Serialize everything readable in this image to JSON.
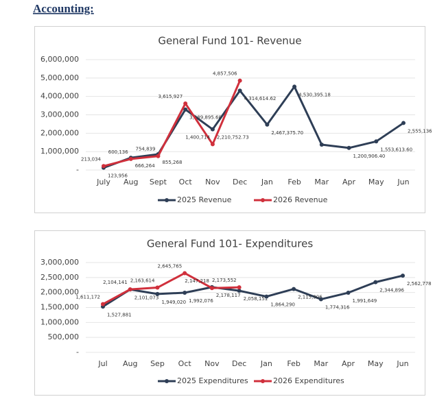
{
  "heading": "Accounting:",
  "chart_data": [
    {
      "type": "line",
      "title": "General Fund 101- Revenue",
      "categories": [
        "July",
        "Aug",
        "Sept",
        "Oct",
        "Nov",
        "Dec",
        "Jan",
        "Feb",
        "Mar",
        "Apr",
        "May",
        "Jun"
      ],
      "series": [
        {
          "name": "2025 Revenue",
          "color": "#2e3e56",
          "values": [
            123956,
            666264,
            855268,
            3289895.68,
            2210752.73,
            4314614.62,
            2467375.7,
            4530395.18,
            1380000,
            1200906.4,
            1553613.6,
            2555136
          ],
          "value_labels": [
            "123,956",
            "666,264",
            "855,268",
            "3,289,895.68",
            "2,210,752.73",
            "4,314,614.62",
            "2,467,375.70",
            "4,530,395.18",
            null,
            "1,200,906.40",
            "1,553,613.60",
            "2,555,136"
          ]
        },
        {
          "name": "2026 Revenue",
          "color": "#d0303c",
          "values": [
            213034,
            600136,
            754839,
            3615927,
            1400714,
            4857506,
            null,
            null,
            null,
            null,
            null,
            null
          ],
          "value_labels": [
            "213,034",
            "600,136",
            "754,839",
            "3,615,927",
            "1,400,714",
            "4,857,506",
            null,
            null,
            null,
            null,
            null,
            null
          ]
        }
      ],
      "ylim": [
        0,
        6000000
      ],
      "yticks": [
        {
          "value": 0,
          "label": "-"
        },
        {
          "value": 1000000,
          "label": "1,000,000"
        },
        {
          "value": 2000000,
          "label": "2,000,000"
        },
        {
          "value": 3000000,
          "label": "3,000,000"
        },
        {
          "value": 4000000,
          "label": "4,000,000"
        },
        {
          "value": 5000000,
          "label": "5,000,000"
        },
        {
          "value": 6000000,
          "label": "6,000,000"
        }
      ],
      "grid": true,
      "legend": "bottom"
    },
    {
      "type": "line",
      "title": "General Fund 101- Expenditures",
      "categories": [
        "Jul",
        "Aug",
        "Sep",
        "Oct",
        "Nov",
        "Dec",
        "Jan",
        "Feb",
        "Mar",
        "Apr",
        "May",
        "Jun"
      ],
      "series": [
        {
          "name": "2025 Expenditures",
          "color": "#2e3e56",
          "values": [
            1527881,
            2101073,
            1949020,
            1992076,
            2178117,
            2058151,
            1864290,
            2115906,
            1774316,
            1991649,
            2344896,
            2562778
          ],
          "value_labels": [
            "1,527,881",
            "2,101,073",
            "1,949,020",
            "1,992,076",
            "2,178,117",
            "2,058,151",
            "1,864,290",
            "2,115,906",
            "1,774,316",
            "1,991,649",
            "2,344,896",
            "2,562,778"
          ]
        },
        {
          "name": "2026 Expenditures",
          "color": "#d0303c",
          "values": [
            1611172,
            2104141,
            2163614,
            2645765,
            2147218,
            2173552,
            null,
            null,
            null,
            null,
            null,
            null
          ],
          "value_labels": [
            "1,611,172",
            "2,104,141",
            "2,163,614",
            "2,645,765",
            "2,147,218",
            "2,173,552",
            null,
            null,
            null,
            null,
            null,
            null
          ]
        }
      ],
      "ylim": [
        0,
        3000000
      ],
      "yticks": [
        {
          "value": 0,
          "label": "-"
        },
        {
          "value": 500000,
          "label": "500,000"
        },
        {
          "value": 1000000,
          "label": "1,000,000"
        },
        {
          "value": 1500000,
          "label": "1,500,000"
        },
        {
          "value": 2000000,
          "label": "2,000,000"
        },
        {
          "value": 2500000,
          "label": "2,500,000"
        },
        {
          "value": 3000000,
          "label": "3,000,000"
        }
      ],
      "grid": true,
      "legend": "bottom"
    }
  ]
}
